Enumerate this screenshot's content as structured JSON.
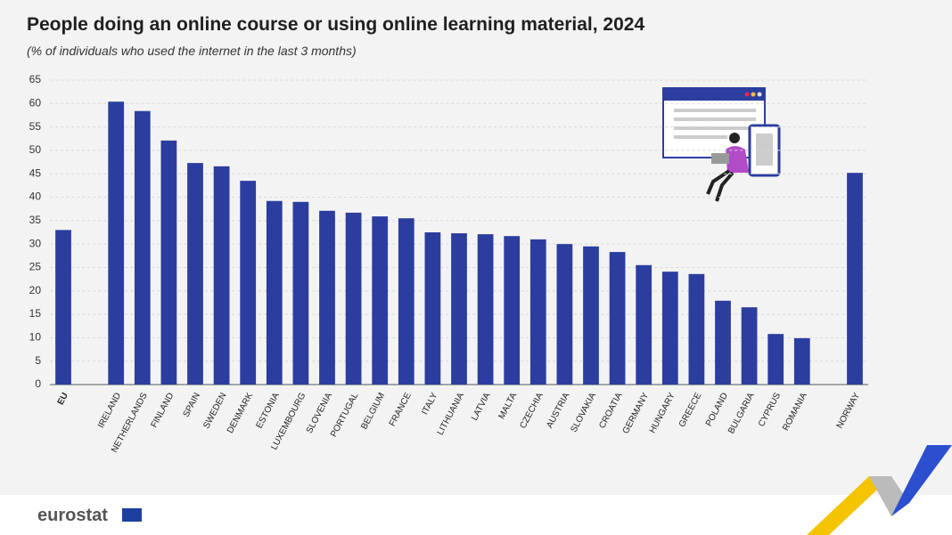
{
  "chart_data": {
    "type": "bar",
    "title": "People doing an online course or using online learning material, 2024",
    "subtitle": "(% of individuals who used the internet in the last 3 months)",
    "source": "eurostat",
    "categories": [
      "EU",
      null,
      "IRELAND",
      "NETHERLANDS",
      "FINLAND",
      "SPAIN",
      "SWEDEN",
      "DENMARK",
      "ESTONIA",
      "LUXEMBOURG",
      "SLOVENIA",
      "PORTUGAL",
      "BELGIUM",
      "FRANCE",
      "ITALY",
      "LITHUANIA",
      "LATVIA",
      "MALTA",
      "CZECHIA",
      "AUSTRIA",
      "SLOVAKIA",
      "CROATIA",
      "GERMANY",
      "HUNGARY",
      "GREECE",
      "POLAND",
      "BULGARIA",
      "CYPRUS",
      "ROMANIA",
      null,
      "NORWAY"
    ],
    "values": [
      33.0,
      null,
      60.4,
      58.4,
      52.1,
      47.3,
      46.6,
      43.5,
      39.2,
      39.0,
      37.1,
      36.7,
      35.9,
      35.5,
      32.5,
      32.3,
      32.1,
      31.7,
      31.0,
      30.0,
      29.5,
      28.3,
      25.5,
      24.1,
      23.6,
      17.9,
      16.5,
      10.8,
      9.9,
      null,
      45.2
    ],
    "color": "#2b3e9f",
    "ylim": [
      0,
      65
    ],
    "yticks": [
      0,
      5,
      10,
      15,
      20,
      25,
      30,
      35,
      40,
      45,
      50,
      55,
      60,
      65
    ],
    "grid": true
  }
}
